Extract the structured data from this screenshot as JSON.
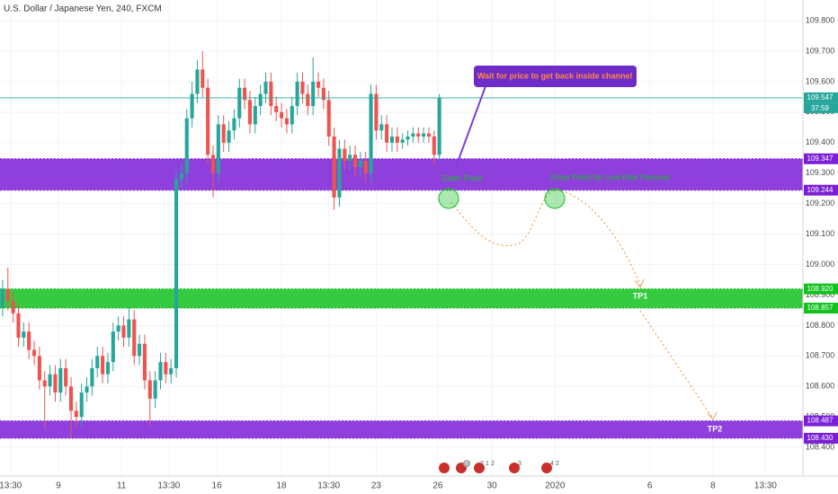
{
  "chart_data": {
    "type": "candlestick",
    "title": "U.S. Dollar / Japanese Yen, 240, FXCM",
    "up_color": "#26a69a",
    "down_color": "#ef5350",
    "grid": true,
    "ylim": [
      108.306,
      109.868
    ],
    "xlim": [
      -0.5,
      152.1
    ],
    "yticks": [
      {
        "value": 109.8,
        "label": "109.800"
      },
      {
        "value": 109.7,
        "label": "109.700"
      },
      {
        "value": 109.6,
        "label": "109.600"
      },
      {
        "value": 109.5,
        "label": "109.500"
      },
      {
        "value": 109.4,
        "label": "109.400"
      },
      {
        "value": 109.3,
        "label": "109.300"
      },
      {
        "value": 109.2,
        "label": "109.200"
      },
      {
        "value": 109.1,
        "label": "109.100"
      },
      {
        "value": 109.0,
        "label": "109.000"
      },
      {
        "value": 108.9,
        "label": "108.900"
      },
      {
        "value": 108.8,
        "label": "108.800"
      },
      {
        "value": 108.7,
        "label": "108.700"
      },
      {
        "value": 108.6,
        "label": "108.600"
      },
      {
        "value": 108.5,
        "label": "108.500"
      },
      {
        "value": 108.4,
        "label": "108.400"
      }
    ],
    "xticks": [
      {
        "value": 1.5,
        "label": "13:30"
      },
      {
        "value": 10.6,
        "label": "9"
      },
      {
        "value": 22.6,
        "label": "11"
      },
      {
        "value": 31.6,
        "label": "13:30"
      },
      {
        "value": 40.7,
        "label": "16"
      },
      {
        "value": 53,
        "label": "18"
      },
      {
        "value": 62,
        "label": "13:30"
      },
      {
        "value": 71,
        "label": "23"
      },
      {
        "value": 82.7,
        "label": "26"
      },
      {
        "value": 93,
        "label": "30"
      },
      {
        "value": 105,
        "label": "2020"
      },
      {
        "value": 123,
        "label": "6"
      },
      {
        "value": 135,
        "label": "8"
      },
      {
        "value": 145,
        "label": "13:30"
      }
    ],
    "ohlc": {
      "open": [
        108.86,
        108.92,
        108.88,
        108.84,
        108.76,
        108.78,
        108.72,
        108.7,
        108.62,
        108.6,
        108.64,
        108.58,
        108.66,
        108.6,
        108.52,
        108.5,
        108.58,
        108.6,
        108.66,
        108.7,
        108.64,
        108.68,
        108.78,
        108.8,
        108.76,
        108.82,
        108.7,
        108.74,
        108.62,
        108.56,
        108.62,
        108.68,
        108.64,
        108.66,
        109.28,
        109.3,
        109.48,
        109.56,
        109.64,
        109.58,
        109.36,
        109.3,
        109.46,
        109.4,
        109.44,
        109.48,
        109.58,
        109.54,
        109.46,
        109.52,
        109.56,
        109.6,
        109.52,
        109.5,
        109.48,
        109.46,
        109.52,
        109.6,
        109.56,
        109.52,
        109.6,
        109.58,
        109.54,
        109.42,
        109.22,
        109.38,
        109.34,
        109.36,
        109.32,
        109.34,
        109.3,
        109.56,
        109.44,
        109.46,
        109.4,
        109.42,
        109.4,
        109.41,
        109.42,
        109.43,
        109.42,
        109.43,
        109.42,
        109.36
      ],
      "high": [
        108.95,
        108.99,
        108.91,
        108.87,
        108.81,
        108.81,
        108.75,
        108.73,
        108.65,
        108.67,
        108.67,
        108.69,
        108.69,
        108.63,
        108.55,
        108.61,
        108.63,
        108.69,
        108.73,
        108.73,
        108.71,
        108.81,
        108.83,
        108.83,
        108.86,
        108.85,
        108.77,
        108.77,
        108.65,
        108.65,
        108.71,
        108.71,
        108.69,
        109.31,
        109.33,
        109.51,
        109.6,
        109.67,
        109.7,
        109.61,
        109.39,
        109.49,
        109.49,
        109.47,
        109.51,
        109.61,
        109.61,
        109.57,
        109.55,
        109.59,
        109.63,
        109.63,
        109.55,
        109.53,
        109.51,
        109.55,
        109.63,
        109.63,
        109.59,
        109.68,
        109.63,
        109.61,
        109.57,
        109.45,
        109.41,
        109.41,
        109.39,
        109.39,
        109.37,
        109.37,
        109.59,
        109.59,
        109.49,
        109.49,
        109.45,
        109.45,
        109.43,
        109.44,
        109.45,
        109.45,
        109.45,
        109.45,
        109.44,
        109.56
      ],
      "low": [
        108.83,
        108.85,
        108.81,
        108.73,
        108.73,
        108.69,
        108.67,
        108.59,
        108.46,
        108.57,
        108.55,
        108.55,
        108.57,
        108.43,
        108.47,
        108.47,
        108.55,
        108.57,
        108.63,
        108.61,
        108.61,
        108.65,
        108.75,
        108.73,
        108.73,
        108.67,
        108.67,
        108.59,
        108.47,
        108.53,
        108.59,
        108.61,
        108.61,
        108.63,
        109.25,
        109.27,
        109.45,
        109.53,
        109.55,
        109.33,
        109.22,
        109.27,
        109.37,
        109.37,
        109.41,
        109.45,
        109.51,
        109.43,
        109.43,
        109.49,
        109.53,
        109.49,
        109.47,
        109.45,
        109.43,
        109.43,
        109.49,
        109.53,
        109.49,
        109.49,
        109.55,
        109.51,
        109.39,
        109.18,
        109.19,
        109.31,
        109.31,
        109.29,
        109.29,
        109.27,
        109.27,
        109.41,
        109.41,
        109.37,
        109.37,
        109.37,
        109.38,
        109.39,
        109.4,
        109.4,
        109.4,
        109.4,
        109.33,
        109.34
      ],
      "close": [
        108.92,
        108.88,
        108.84,
        108.76,
        108.78,
        108.72,
        108.7,
        108.62,
        108.6,
        108.64,
        108.58,
        108.66,
        108.6,
        108.52,
        108.5,
        108.58,
        108.6,
        108.66,
        108.7,
        108.64,
        108.68,
        108.78,
        108.8,
        108.76,
        108.82,
        108.7,
        108.74,
        108.62,
        108.56,
        108.62,
        108.68,
        108.64,
        108.66,
        109.28,
        109.3,
        109.48,
        109.56,
        109.64,
        109.58,
        109.36,
        109.3,
        109.46,
        109.4,
        109.44,
        109.48,
        109.58,
        109.54,
        109.46,
        109.52,
        109.56,
        109.6,
        109.52,
        109.5,
        109.48,
        109.46,
        109.52,
        109.6,
        109.56,
        109.52,
        109.6,
        109.58,
        109.54,
        109.42,
        109.22,
        109.38,
        109.34,
        109.36,
        109.32,
        109.34,
        109.3,
        109.56,
        109.44,
        109.46,
        109.4,
        109.42,
        109.4,
        109.41,
        109.42,
        109.43,
        109.42,
        109.43,
        109.42,
        109.36,
        109.547
      ]
    },
    "last_price": {
      "value": 109.547,
      "label": "109.547",
      "color": "#26a69a"
    },
    "countdown": "37:59",
    "zones": [
      {
        "top": {
          "value": 109.347,
          "label": "109.347"
        },
        "bottom": {
          "value": 109.244,
          "label": "109.244"
        },
        "color": "#7b1fd6"
      },
      {
        "top": {
          "value": 108.92,
          "label": "108.920"
        },
        "bottom": {
          "value": 108.857,
          "label": "108.857"
        },
        "color": "#12c11e"
      },
      {
        "top": {
          "value": 108.487,
          "label": "108.487"
        },
        "bottom": {
          "value": 108.43,
          "label": "108.430"
        },
        "color": "#7b1fd6"
      }
    ],
    "annotations": {
      "callout": "Wait for price to get back inside channel",
      "enter": "Enter Point",
      "enter_low_risk": "Enter Point for Low-Risk Persons",
      "tp1": "TP1",
      "tp2": "TP2"
    },
    "events": [
      "8",
      "2",
      "1",
      "2",
      "3",
      "4",
      "2"
    ]
  }
}
